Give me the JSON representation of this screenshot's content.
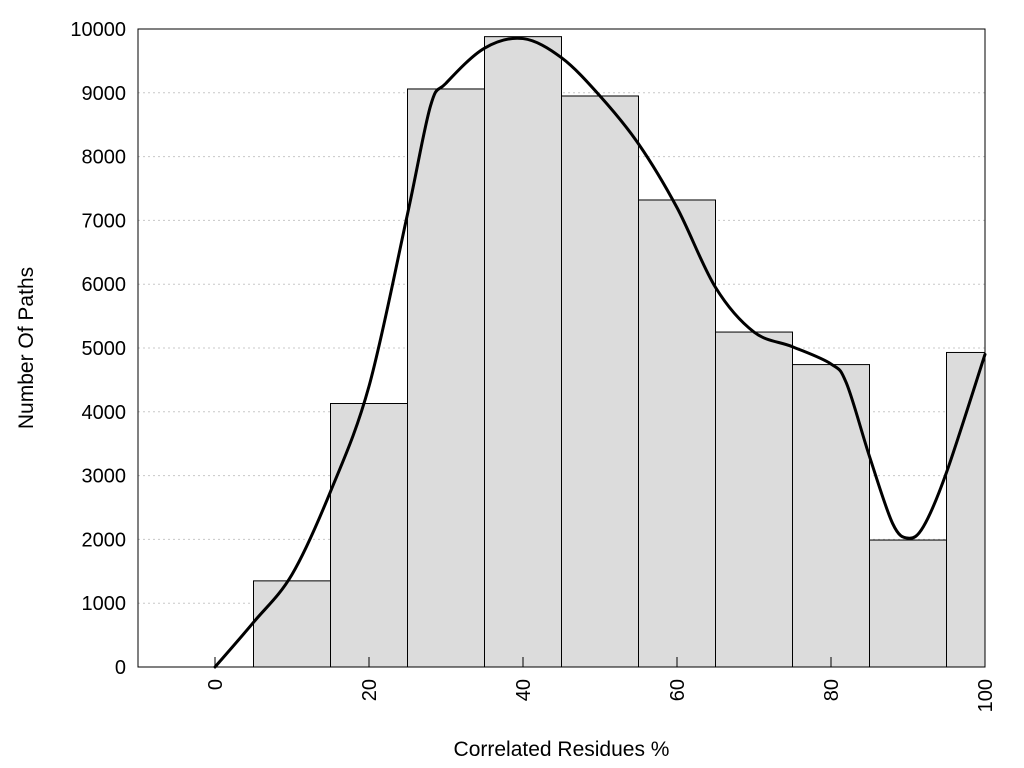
{
  "chart_data": {
    "type": "bar",
    "xlabel": "Correlated Residues %",
    "ylabel": "Number Of Paths",
    "xlim": [
      -10,
      100
    ],
    "ylim": [
      0,
      10000
    ],
    "x_ticks": [
      0,
      20,
      40,
      60,
      80,
      100
    ],
    "y_ticks": [
      0,
      1000,
      2000,
      3000,
      4000,
      5000,
      6000,
      7000,
      8000,
      9000,
      10000
    ],
    "grid": "horizontal dotted",
    "bar_width": 10,
    "bars": [
      {
        "x": 0,
        "value": 0
      },
      {
        "x": 10,
        "value": 1350
      },
      {
        "x": 20,
        "value": 4130
      },
      {
        "x": 30,
        "value": 9060
      },
      {
        "x": 40,
        "value": 9880
      },
      {
        "x": 50,
        "value": 8950
      },
      {
        "x": 60,
        "value": 7320
      },
      {
        "x": 70,
        "value": 5250
      },
      {
        "x": 80,
        "value": 4740
      },
      {
        "x": 90,
        "value": 1990
      },
      {
        "x": 100,
        "value": 4930
      }
    ],
    "curve": {
      "x": [
        0,
        5,
        10,
        15,
        20,
        25,
        28,
        30,
        35,
        40,
        45,
        50,
        55,
        60,
        65,
        70,
        75,
        80,
        82,
        85,
        88,
        90,
        92,
        95,
        100
      ],
      "y": [
        0,
        700,
        1450,
        2750,
        4400,
        7100,
        8800,
        9150,
        9700,
        9850,
        9550,
        8950,
        8200,
        7200,
        5950,
        5250,
        5020,
        4750,
        4450,
        3300,
        2250,
        2020,
        2200,
        3050,
        4900
      ]
    },
    "colors": {
      "bar_fill": "#dcdcdc",
      "bar_stroke": "#000000",
      "curve": "#000000",
      "grid": "#c8c8c8"
    }
  }
}
